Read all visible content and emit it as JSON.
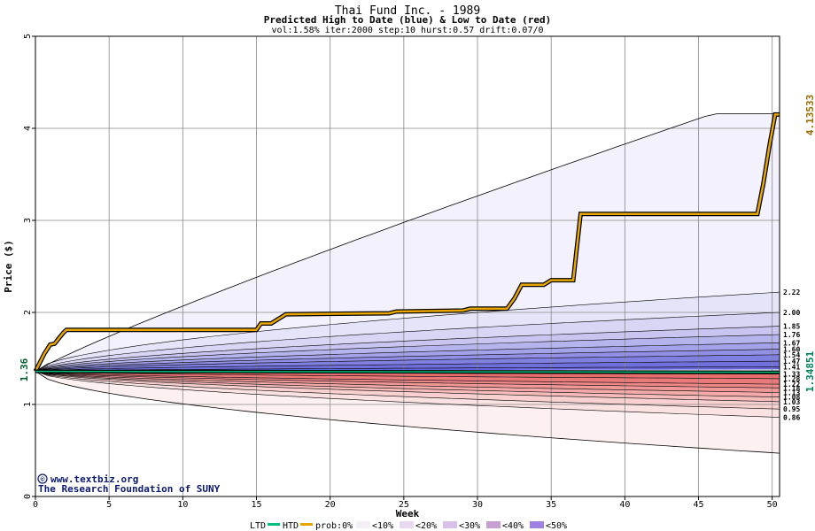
{
  "chart_data": {
    "type": "line",
    "title": "Thai Fund Inc. - 1989",
    "subtitle": "Predicted High to Date (blue) &  Low to Date (red)",
    "params": "vol:1.58% iter:2000 step:10 hurst:0.57 drift:0.07/0",
    "xlabel": "Week",
    "ylabel": "Price ($)",
    "xlim": [
      0,
      50.5
    ],
    "ylim": [
      0,
      5
    ],
    "xticks": [
      0,
      5,
      10,
      15,
      20,
      25,
      30,
      35,
      40,
      45,
      50
    ],
    "yticks": [
      0,
      1,
      2,
      3,
      4,
      5
    ],
    "grid": true,
    "start_price": 1.36,
    "start_label": "1.36",
    "right_labels": {
      "high_final": "4.13533",
      "low_final": "1.34851"
    },
    "upper_band_ends": [
      2.22,
      2.0,
      1.85,
      1.76,
      1.67,
      1.6,
      1.54,
      1.47,
      1.41
    ],
    "upper_band_labels": [
      "2.22",
      "2.00",
      "1.85",
      "1.76",
      "1.67",
      "1.60",
      "1.54",
      "1.47",
      "1.41"
    ],
    "lower_band_ends": [
      1.33,
      1.28,
      1.22,
      1.18,
      1.13,
      1.08,
      1.03,
      0.95,
      0.86
    ],
    "lower_band_labels": [
      "1.33",
      "1.28",
      "1.22",
      "1.18",
      "1.13",
      "1.08",
      "1.03",
      "0.95",
      "0.86"
    ],
    "upper_envelope_end": 4.16,
    "lower_envelope_end": 0.47,
    "series": [
      {
        "name": "HTD",
        "color": "#e8a600",
        "x": [
          0,
          0.6,
          1.0,
          1.3,
          1.6,
          1.9,
          2.1,
          15,
          15.3,
          16,
          16.5,
          17,
          24,
          24.5,
          29,
          29.5,
          32,
          32.5,
          33,
          34.5,
          35,
          36.5,
          37,
          49,
          49.4,
          49.8,
          50.2,
          50.5
        ],
        "y": [
          1.36,
          1.55,
          1.65,
          1.66,
          1.72,
          1.78,
          1.81,
          1.81,
          1.88,
          1.88,
          1.93,
          1.98,
          1.99,
          2.01,
          2.02,
          2.04,
          2.04,
          2.15,
          2.3,
          2.3,
          2.35,
          2.35,
          3.07,
          3.07,
          3.4,
          3.8,
          4.15,
          4.15
        ]
      },
      {
        "name": "LTD",
        "color": "#00c080",
        "x": [
          0,
          50.5
        ],
        "y": [
          1.36,
          1.35
        ]
      }
    ]
  },
  "watermark": {
    "line1": "www.textbiz.org",
    "line2": "The Research Foundation of SUNY",
    "copyright": "©"
  },
  "legend": {
    "ltd": "LTD",
    "htd": "HTD",
    "prob_prefix": "prob:0%",
    "buckets": [
      "<10%",
      "<20%",
      "<30%",
      "<40%",
      "<50%"
    ],
    "colors": {
      "ltd": "#00c080",
      "htd": "#e8a600",
      "b0": "#f5f0f8",
      "b1": "#e8d8f0",
      "b2": "#d8c0e8",
      "b3": "#c8a0d0",
      "b4": "#a080e0"
    }
  }
}
